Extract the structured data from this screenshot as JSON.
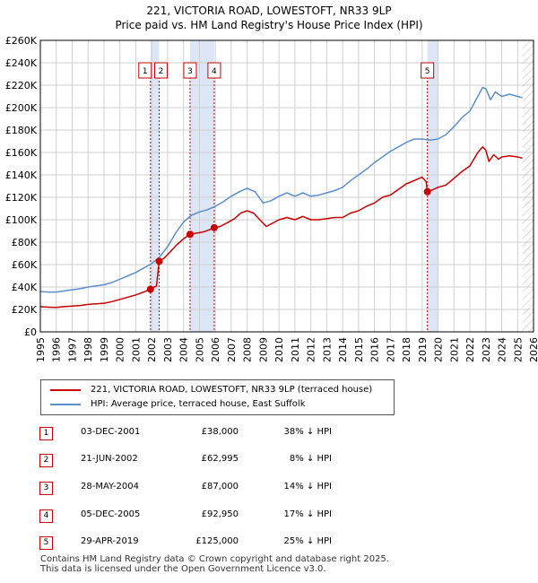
{
  "title": {
    "line1": "221, VICTORIA ROAD, LOWESTOFT, NR33 9LP",
    "line2": "Price paid vs. HM Land Registry's House Price Index (HPI)"
  },
  "colors": {
    "property": "#cc0000",
    "hpi": "#5b8fcf",
    "shade": "#dde6f7",
    "grid": "#cfcfcf"
  },
  "chart_data": {
    "type": "line",
    "xlim": [
      1995,
      2026
    ],
    "ylim": [
      0,
      260000
    ],
    "y_ticks": [
      {
        "value": 0,
        "label": "£0"
      },
      {
        "value": 20000,
        "label": "£20K"
      },
      {
        "value": 40000,
        "label": "£40K"
      },
      {
        "value": 60000,
        "label": "£60K"
      },
      {
        "value": 80000,
        "label": "£80K"
      },
      {
        "value": 100000,
        "label": "£100K"
      },
      {
        "value": 120000,
        "label": "£120K"
      },
      {
        "value": 140000,
        "label": "£140K"
      },
      {
        "value": 160000,
        "label": "£160K"
      },
      {
        "value": 180000,
        "label": "£180K"
      },
      {
        "value": 200000,
        "label": "£200K"
      },
      {
        "value": 220000,
        "label": "£220K"
      },
      {
        "value": 240000,
        "label": "£240K"
      },
      {
        "value": 260000,
        "label": "£260K"
      }
    ],
    "x_ticks": [
      "1995",
      "1996",
      "1997",
      "1998",
      "1999",
      "2000",
      "2001",
      "2002",
      "2003",
      "2004",
      "2005",
      "2006",
      "2007",
      "2008",
      "2009",
      "2010",
      "2011",
      "2012",
      "2013",
      "2014",
      "2015",
      "2016",
      "2017",
      "2018",
      "2019",
      "2020",
      "2021",
      "2022",
      "2023",
      "2024",
      "2025",
      "2026"
    ],
    "series": [
      {
        "name": "221, VICTORIA ROAD, LOWESTOFT, NR33 9LP (terraced house)",
        "color": "#cc0000",
        "points": [
          [
            1995.0,
            22500
          ],
          [
            1995.5,
            22000
          ],
          [
            1996.0,
            21800
          ],
          [
            1996.5,
            22500
          ],
          [
            1997.0,
            23000
          ],
          [
            1997.5,
            23500
          ],
          [
            1998.0,
            24500
          ],
          [
            1998.5,
            25000
          ],
          [
            1999.0,
            25500
          ],
          [
            1999.5,
            27000
          ],
          [
            2000.0,
            29000
          ],
          [
            2000.5,
            31000
          ],
          [
            2001.0,
            33000
          ],
          [
            2001.5,
            35500
          ],
          [
            2001.92,
            38000
          ],
          [
            2002.0,
            39000
          ],
          [
            2002.3,
            41000
          ],
          [
            2002.47,
            62995
          ],
          [
            2002.8,
            66000
          ],
          [
            2003.2,
            72000
          ],
          [
            2003.6,
            78000
          ],
          [
            2004.0,
            83000
          ],
          [
            2004.4,
            87000
          ],
          [
            2004.8,
            88000
          ],
          [
            2005.2,
            89000
          ],
          [
            2005.6,
            91000
          ],
          [
            2005.93,
            92950
          ],
          [
            2006.3,
            94000
          ],
          [
            2006.7,
            97000
          ],
          [
            2007.2,
            101000
          ],
          [
            2007.6,
            106000
          ],
          [
            2008.0,
            108000
          ],
          [
            2008.4,
            106000
          ],
          [
            2008.8,
            100000
          ],
          [
            2009.2,
            94000
          ],
          [
            2009.6,
            97000
          ],
          [
            2010.0,
            100000
          ],
          [
            2010.5,
            102000
          ],
          [
            2011.0,
            100000
          ],
          [
            2011.5,
            103000
          ],
          [
            2012.0,
            100000
          ],
          [
            2012.5,
            100000
          ],
          [
            2013.0,
            101000
          ],
          [
            2013.5,
            102000
          ],
          [
            2014.0,
            102000
          ],
          [
            2014.5,
            106000
          ],
          [
            2015.0,
            108000
          ],
          [
            2015.5,
            112000
          ],
          [
            2016.0,
            115000
          ],
          [
            2016.5,
            120000
          ],
          [
            2017.0,
            122000
          ],
          [
            2017.5,
            127000
          ],
          [
            2018.0,
            132000
          ],
          [
            2018.5,
            135000
          ],
          [
            2019.0,
            138000
          ],
          [
            2019.25,
            134000
          ],
          [
            2019.33,
            125000
          ],
          [
            2019.7,
            127000
          ],
          [
            2020.0,
            129000
          ],
          [
            2020.5,
            131000
          ],
          [
            2021.0,
            137000
          ],
          [
            2021.5,
            143000
          ],
          [
            2022.0,
            148000
          ],
          [
            2022.5,
            160000
          ],
          [
            2022.8,
            165000
          ],
          [
            2023.0,
            162000
          ],
          [
            2023.2,
            152000
          ],
          [
            2023.5,
            158000
          ],
          [
            2023.8,
            154000
          ],
          [
            2024.0,
            156000
          ],
          [
            2024.5,
            157000
          ],
          [
            2025.0,
            156000
          ],
          [
            2025.3,
            155000
          ]
        ]
      },
      {
        "name": "HPI: Average price, terraced house, East Suffolk",
        "color": "#5b8fcf",
        "points": [
          [
            1995.0,
            36000
          ],
          [
            1995.5,
            35500
          ],
          [
            1996.0,
            35500
          ],
          [
            1996.5,
            36500
          ],
          [
            1997.0,
            37500
          ],
          [
            1997.5,
            38500
          ],
          [
            1998.0,
            40000
          ],
          [
            1998.5,
            41000
          ],
          [
            1999.0,
            42000
          ],
          [
            1999.5,
            44000
          ],
          [
            2000.0,
            47000
          ],
          [
            2000.5,
            50000
          ],
          [
            2001.0,
            53000
          ],
          [
            2001.5,
            57000
          ],
          [
            2002.0,
            61000
          ],
          [
            2002.5,
            67000
          ],
          [
            2003.0,
            76000
          ],
          [
            2003.5,
            88000
          ],
          [
            2004.0,
            98000
          ],
          [
            2004.5,
            104000
          ],
          [
            2005.0,
            107000
          ],
          [
            2005.5,
            109000
          ],
          [
            2006.0,
            112000
          ],
          [
            2006.5,
            116000
          ],
          [
            2007.0,
            121000
          ],
          [
            2007.5,
            125000
          ],
          [
            2008.0,
            128000
          ],
          [
            2008.5,
            125000
          ],
          [
            2009.0,
            115000
          ],
          [
            2009.5,
            117000
          ],
          [
            2010.0,
            121000
          ],
          [
            2010.5,
            124000
          ],
          [
            2011.0,
            121000
          ],
          [
            2011.5,
            124000
          ],
          [
            2012.0,
            121000
          ],
          [
            2012.5,
            122000
          ],
          [
            2013.0,
            124000
          ],
          [
            2013.5,
            126000
          ],
          [
            2014.0,
            129000
          ],
          [
            2014.5,
            135000
          ],
          [
            2015.0,
            140000
          ],
          [
            2015.5,
            145000
          ],
          [
            2016.0,
            151000
          ],
          [
            2016.5,
            156000
          ],
          [
            2017.0,
            161000
          ],
          [
            2017.5,
            165000
          ],
          [
            2018.0,
            169000
          ],
          [
            2018.5,
            172000
          ],
          [
            2019.0,
            172000
          ],
          [
            2019.5,
            171000
          ],
          [
            2020.0,
            172000
          ],
          [
            2020.5,
            176000
          ],
          [
            2021.0,
            183000
          ],
          [
            2021.5,
            191000
          ],
          [
            2022.0,
            197000
          ],
          [
            2022.5,
            210000
          ],
          [
            2022.8,
            218000
          ],
          [
            2023.0,
            217000
          ],
          [
            2023.3,
            207000
          ],
          [
            2023.6,
            214000
          ],
          [
            2024.0,
            210000
          ],
          [
            2024.5,
            212000
          ],
          [
            2025.0,
            210000
          ],
          [
            2025.3,
            209000
          ]
        ]
      }
    ],
    "sales": [
      {
        "id": "1",
        "x": 2001.92,
        "y": 38000
      },
      {
        "id": "2",
        "x": 2002.47,
        "y": 62995
      },
      {
        "id": "3",
        "x": 2004.41,
        "y": 87000
      },
      {
        "id": "4",
        "x": 2005.93,
        "y": 92950
      },
      {
        "id": "5",
        "x": 2019.33,
        "y": 125000
      }
    ],
    "shaded_ranges": [
      [
        2001.92,
        2002.47
      ],
      [
        2004.41,
        2005.93
      ],
      [
        2019.33,
        2020.0
      ]
    ],
    "projection_start": 2025.3
  },
  "legend": {
    "property": "221, VICTORIA ROAD, LOWESTOFT, NR33 9LP (terraced house)",
    "hpi": "HPI: Average price, terraced house, East Suffolk"
  },
  "sales_table": [
    {
      "num": "1",
      "date": "03-DEC-2001",
      "price": "£38,000",
      "hpi": "38% ↓ HPI"
    },
    {
      "num": "2",
      "date": "21-JUN-2002",
      "price": "£62,995",
      "hpi": "8% ↓ HPI"
    },
    {
      "num": "3",
      "date": "28-MAY-2004",
      "price": "£87,000",
      "hpi": "14% ↓ HPI"
    },
    {
      "num": "4",
      "date": "05-DEC-2005",
      "price": "£92,950",
      "hpi": "17% ↓ HPI"
    },
    {
      "num": "5",
      "date": "29-APR-2019",
      "price": "£125,000",
      "hpi": "25% ↓ HPI"
    }
  ],
  "footer": {
    "line1": "Contains HM Land Registry data © Crown copyright and database right 2025.",
    "line2": "This data is licensed under the Open Government Licence v3.0."
  }
}
